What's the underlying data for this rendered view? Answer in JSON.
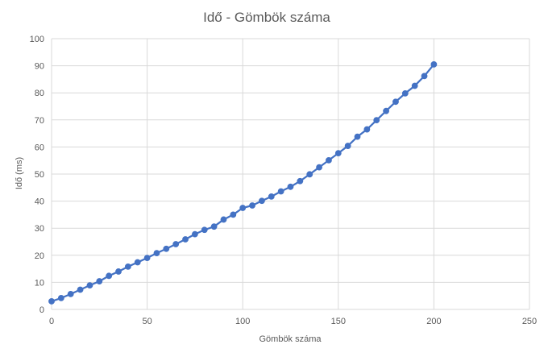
{
  "chart_data": {
    "type": "scatter",
    "title": "Idő - Gömbök száma",
    "xlabel": "Gömbök száma",
    "ylabel": "Idő (ms)",
    "xlim": [
      0,
      250
    ],
    "ylim": [
      0,
      100
    ],
    "x_ticks": [
      0,
      50,
      100,
      150,
      200,
      250
    ],
    "y_ticks": [
      0,
      10,
      20,
      30,
      40,
      50,
      60,
      70,
      80,
      90,
      100
    ],
    "grid": true,
    "legend": "none",
    "colors": {
      "series": "#4472C4",
      "grid": "#D9D9D9",
      "text": "#595959"
    },
    "series": [
      {
        "x": [
          0,
          5,
          10,
          15,
          20,
          25,
          30,
          35,
          40,
          45,
          50,
          55,
          60,
          65,
          70,
          75,
          80,
          85,
          90,
          95,
          100,
          105,
          110,
          115,
          120,
          125,
          130,
          135,
          140,
          145,
          150,
          155,
          160,
          165,
          170,
          175,
          180,
          185,
          190,
          195,
          200
        ],
        "y": [
          3.0,
          4.2,
          5.7,
          7.3,
          8.9,
          10.4,
          12.4,
          14.0,
          15.8,
          17.4,
          19.0,
          20.8,
          22.4,
          24.1,
          25.9,
          27.8,
          29.4,
          30.6,
          33.2,
          35.0,
          37.5,
          38.4,
          40.1,
          41.7,
          43.6,
          45.3,
          47.4,
          49.9,
          52.5,
          55.1,
          57.7,
          60.4,
          63.8,
          66.5,
          69.9,
          73.3,
          76.7,
          79.8,
          82.6,
          86.2,
          90.5
        ]
      }
    ]
  }
}
